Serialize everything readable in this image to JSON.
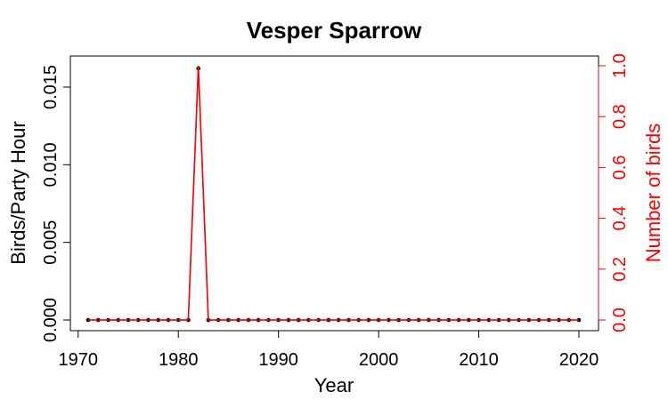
{
  "chart_data": {
    "type": "line",
    "title": "Vesper Sparrow",
    "xlabel": "Year",
    "ylabel": "Birds/Party Hour",
    "y2label": "Number of birds",
    "xlim": [
      1971,
      2020
    ],
    "ylim": [
      0,
      0.016
    ],
    "y2lim": [
      0,
      1
    ],
    "x_ticks": [
      "1970",
      "1980",
      "1990",
      "2000",
      "2010",
      "2020"
    ],
    "y_ticks": [
      "0.000",
      "0.005",
      "0.010",
      "0.015"
    ],
    "y2_ticks": [
      "0.0",
      "0.2",
      "0.4",
      "0.6",
      "0.8",
      "1.0"
    ],
    "x": [
      1971,
      1972,
      1973,
      1974,
      1975,
      1976,
      1977,
      1978,
      1979,
      1980,
      1981,
      1982,
      1983,
      1984,
      1985,
      1986,
      1987,
      1988,
      1989,
      1990,
      1991,
      1992,
      1993,
      1994,
      1995,
      1996,
      1997,
      1998,
      1999,
      2000,
      2001,
      2002,
      2003,
      2004,
      2005,
      2006,
      2007,
      2008,
      2009,
      2010,
      2011,
      2012,
      2013,
      2014,
      2015,
      2016,
      2017,
      2018,
      2019,
      2020
    ],
    "series": [
      {
        "axis": "left",
        "color": "#000000",
        "marker": "point",
        "values": [
          0,
          0,
          0,
          0,
          0,
          0,
          0,
          0,
          0,
          0,
          0,
          0.0162,
          0,
          0,
          0,
          0,
          0,
          0,
          0,
          0,
          0,
          0,
          0,
          0,
          0,
          0,
          0,
          0,
          0,
          0,
          0,
          0,
          0,
          0,
          0,
          0,
          0,
          0,
          0,
          0,
          0,
          0,
          0,
          0,
          0,
          0,
          0,
          0,
          0,
          0
        ]
      },
      {
        "axis": "right",
        "color": "#ff0000",
        "marker": "none",
        "values": [
          0,
          0,
          0,
          0,
          0,
          0,
          0,
          0,
          0,
          0,
          0,
          1,
          0,
          0,
          0,
          0,
          0,
          0,
          0,
          0,
          0,
          0,
          0,
          0,
          0,
          0,
          0,
          0,
          0,
          0,
          0,
          0,
          0,
          0,
          0,
          0,
          0,
          0,
          0,
          0,
          0,
          0,
          0,
          0,
          0,
          0,
          0,
          0,
          0,
          0
        ]
      }
    ],
    "grid": false,
    "right_axis_color": "#ff0000"
  }
}
